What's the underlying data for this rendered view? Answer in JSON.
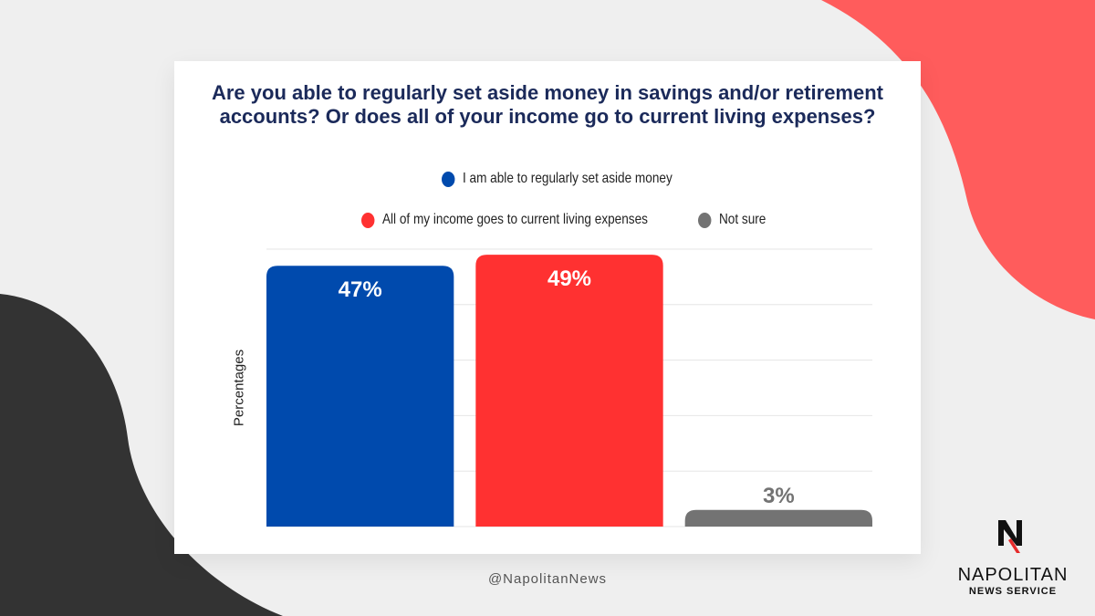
{
  "chart_data": {
    "type": "bar",
    "title": "Are you able to regularly set aside money in savings and/or retirement accounts? Or does all of your income go to current living expenses?",
    "ylabel": "Percentages",
    "xlabel": "",
    "ylim": [
      0,
      50
    ],
    "grid": true,
    "legend_placement": "top",
    "categories": [
      "I am able to regularly set aside money",
      "All of my income goes to current living expenses",
      "Not sure"
    ],
    "values": [
      47,
      49,
      3
    ],
    "data_labels": [
      "47%",
      "49%",
      "3%"
    ],
    "colors": [
      "#004aad",
      "#ff3131",
      "#737373"
    ]
  },
  "footer": {
    "handle": "@NapolitanNews"
  },
  "logo": {
    "name": "NAPOLITAN",
    "subtitle": "NEWS SERVICE"
  }
}
